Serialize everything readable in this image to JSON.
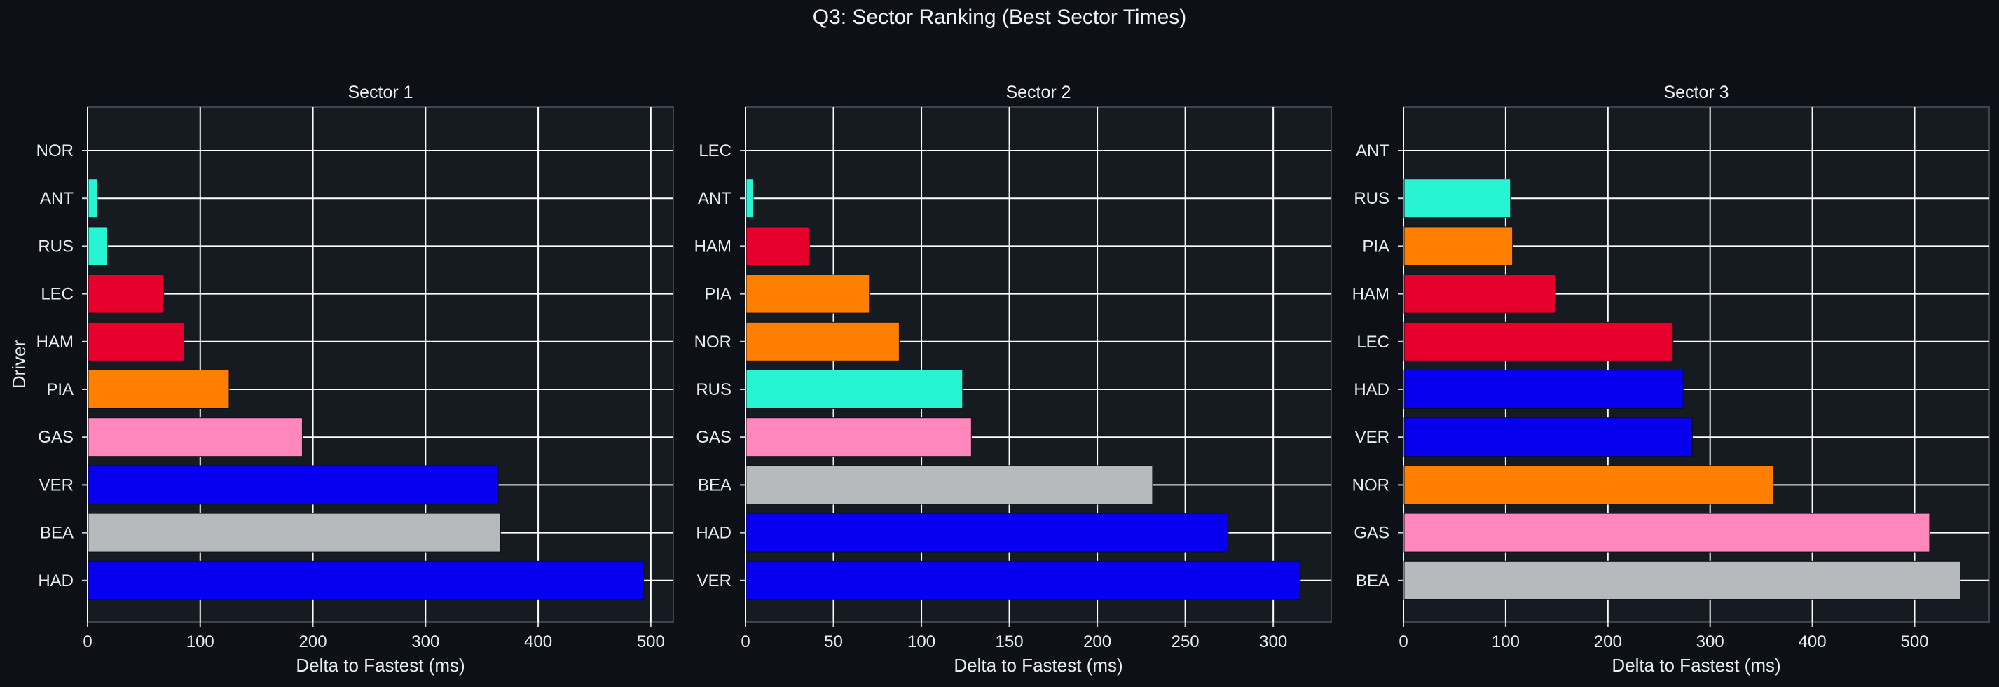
{
  "title": "Q3: Sector Ranking (Best Sector Times)",
  "colors": {
    "background": "#0d1117",
    "plot_background": "#161b22",
    "grid": "#ffffff",
    "text": "#e6edf3"
  },
  "team_colors": {
    "NOR": "#ff8000",
    "PIA": "#ff8000",
    "ANT": "#27f4d2",
    "RUS": "#27f4d2",
    "LEC": "#e8002d",
    "HAM": "#e8002d",
    "VER": "#0600ef",
    "HAD": "#0600ef",
    "GAS": "#ff87bc",
    "BEA": "#b6babd"
  },
  "chart_data": [
    {
      "type": "bar",
      "orientation": "horizontal",
      "title": "Sector 1",
      "xlabel": "Delta to Fastest (ms)",
      "ylabel": "Driver",
      "categories": [
        "NOR",
        "ANT",
        "RUS",
        "LEC",
        "HAM",
        "PIA",
        "GAS",
        "VER",
        "BEA",
        "HAD"
      ],
      "values": [
        0,
        8,
        17,
        67,
        85,
        125,
        190,
        364,
        366,
        493
      ],
      "xlim": [
        0,
        520
      ],
      "xticks": [
        0,
        100,
        200,
        300,
        400,
        500
      ],
      "grid": true
    },
    {
      "type": "bar",
      "orientation": "horizontal",
      "title": "Sector 2",
      "xlabel": "Delta to Fastest (ms)",
      "ylabel": "",
      "categories": [
        "LEC",
        "ANT",
        "HAM",
        "PIA",
        "NOR",
        "RUS",
        "GAS",
        "BEA",
        "HAD",
        "VER"
      ],
      "values": [
        0,
        4,
        36,
        70,
        87,
        123,
        128,
        231,
        274,
        315
      ],
      "xlim": [
        0,
        333
      ],
      "xticks": [
        0,
        50,
        100,
        150,
        200,
        250,
        300
      ],
      "grid": true
    },
    {
      "type": "bar",
      "orientation": "horizontal",
      "title": "Sector 3",
      "xlabel": "Delta to Fastest (ms)",
      "ylabel": "",
      "categories": [
        "ANT",
        "RUS",
        "PIA",
        "HAM",
        "LEC",
        "HAD",
        "VER",
        "NOR",
        "GAS",
        "BEA"
      ],
      "values": [
        0,
        104,
        106,
        148,
        263,
        273,
        282,
        361,
        514,
        544
      ],
      "xlim": [
        0,
        573
      ],
      "xticks": [
        0,
        100,
        200,
        300,
        400,
        500
      ],
      "grid": true
    }
  ]
}
